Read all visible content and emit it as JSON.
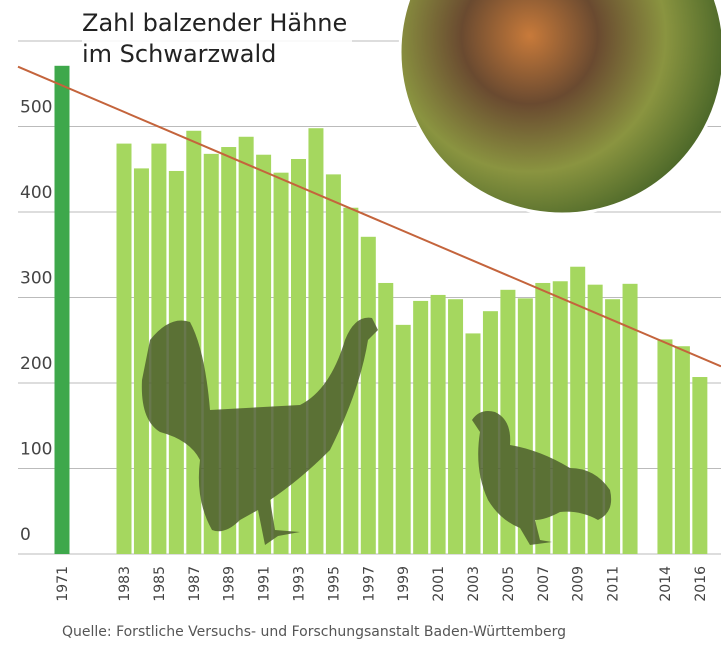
{
  "chart_data": {
    "type": "bar",
    "title": "Zahl balzender Hähne im Schwarzwald",
    "source": "Quelle: Forstliche Versuchs- und Forschungsanstalt Baden-Württemberg",
    "categories": [
      "1971",
      "1983",
      null,
      "1985",
      null,
      "1987",
      null,
      "1989",
      null,
      "1991",
      null,
      "1993",
      null,
      "1995",
      null,
      "1997",
      null,
      "1999",
      null,
      "2001",
      null,
      "2003",
      null,
      "2005",
      null,
      "2007",
      null,
      "2009",
      null,
      "2011",
      null,
      null,
      "2014",
      null,
      "2016"
    ],
    "values": [
      571,
      480,
      451,
      480,
      448,
      495,
      468,
      476,
      488,
      467,
      446,
      462,
      498,
      444,
      405,
      371,
      317,
      268,
      296,
      303,
      298,
      258,
      284,
      309,
      299,
      317,
      319,
      336,
      315,
      298,
      316,
      null,
      251,
      243,
      207
    ],
    "colors": [
      "#3ea84b",
      "#a5d75f"
    ],
    "trend": {
      "values": [
        548,
        230
      ],
      "color": "#c4643c"
    },
    "ylim": [
      0,
      600
    ],
    "yticks": [
      0,
      100,
      200,
      300,
      400,
      500
    ],
    "grid": true
  }
}
